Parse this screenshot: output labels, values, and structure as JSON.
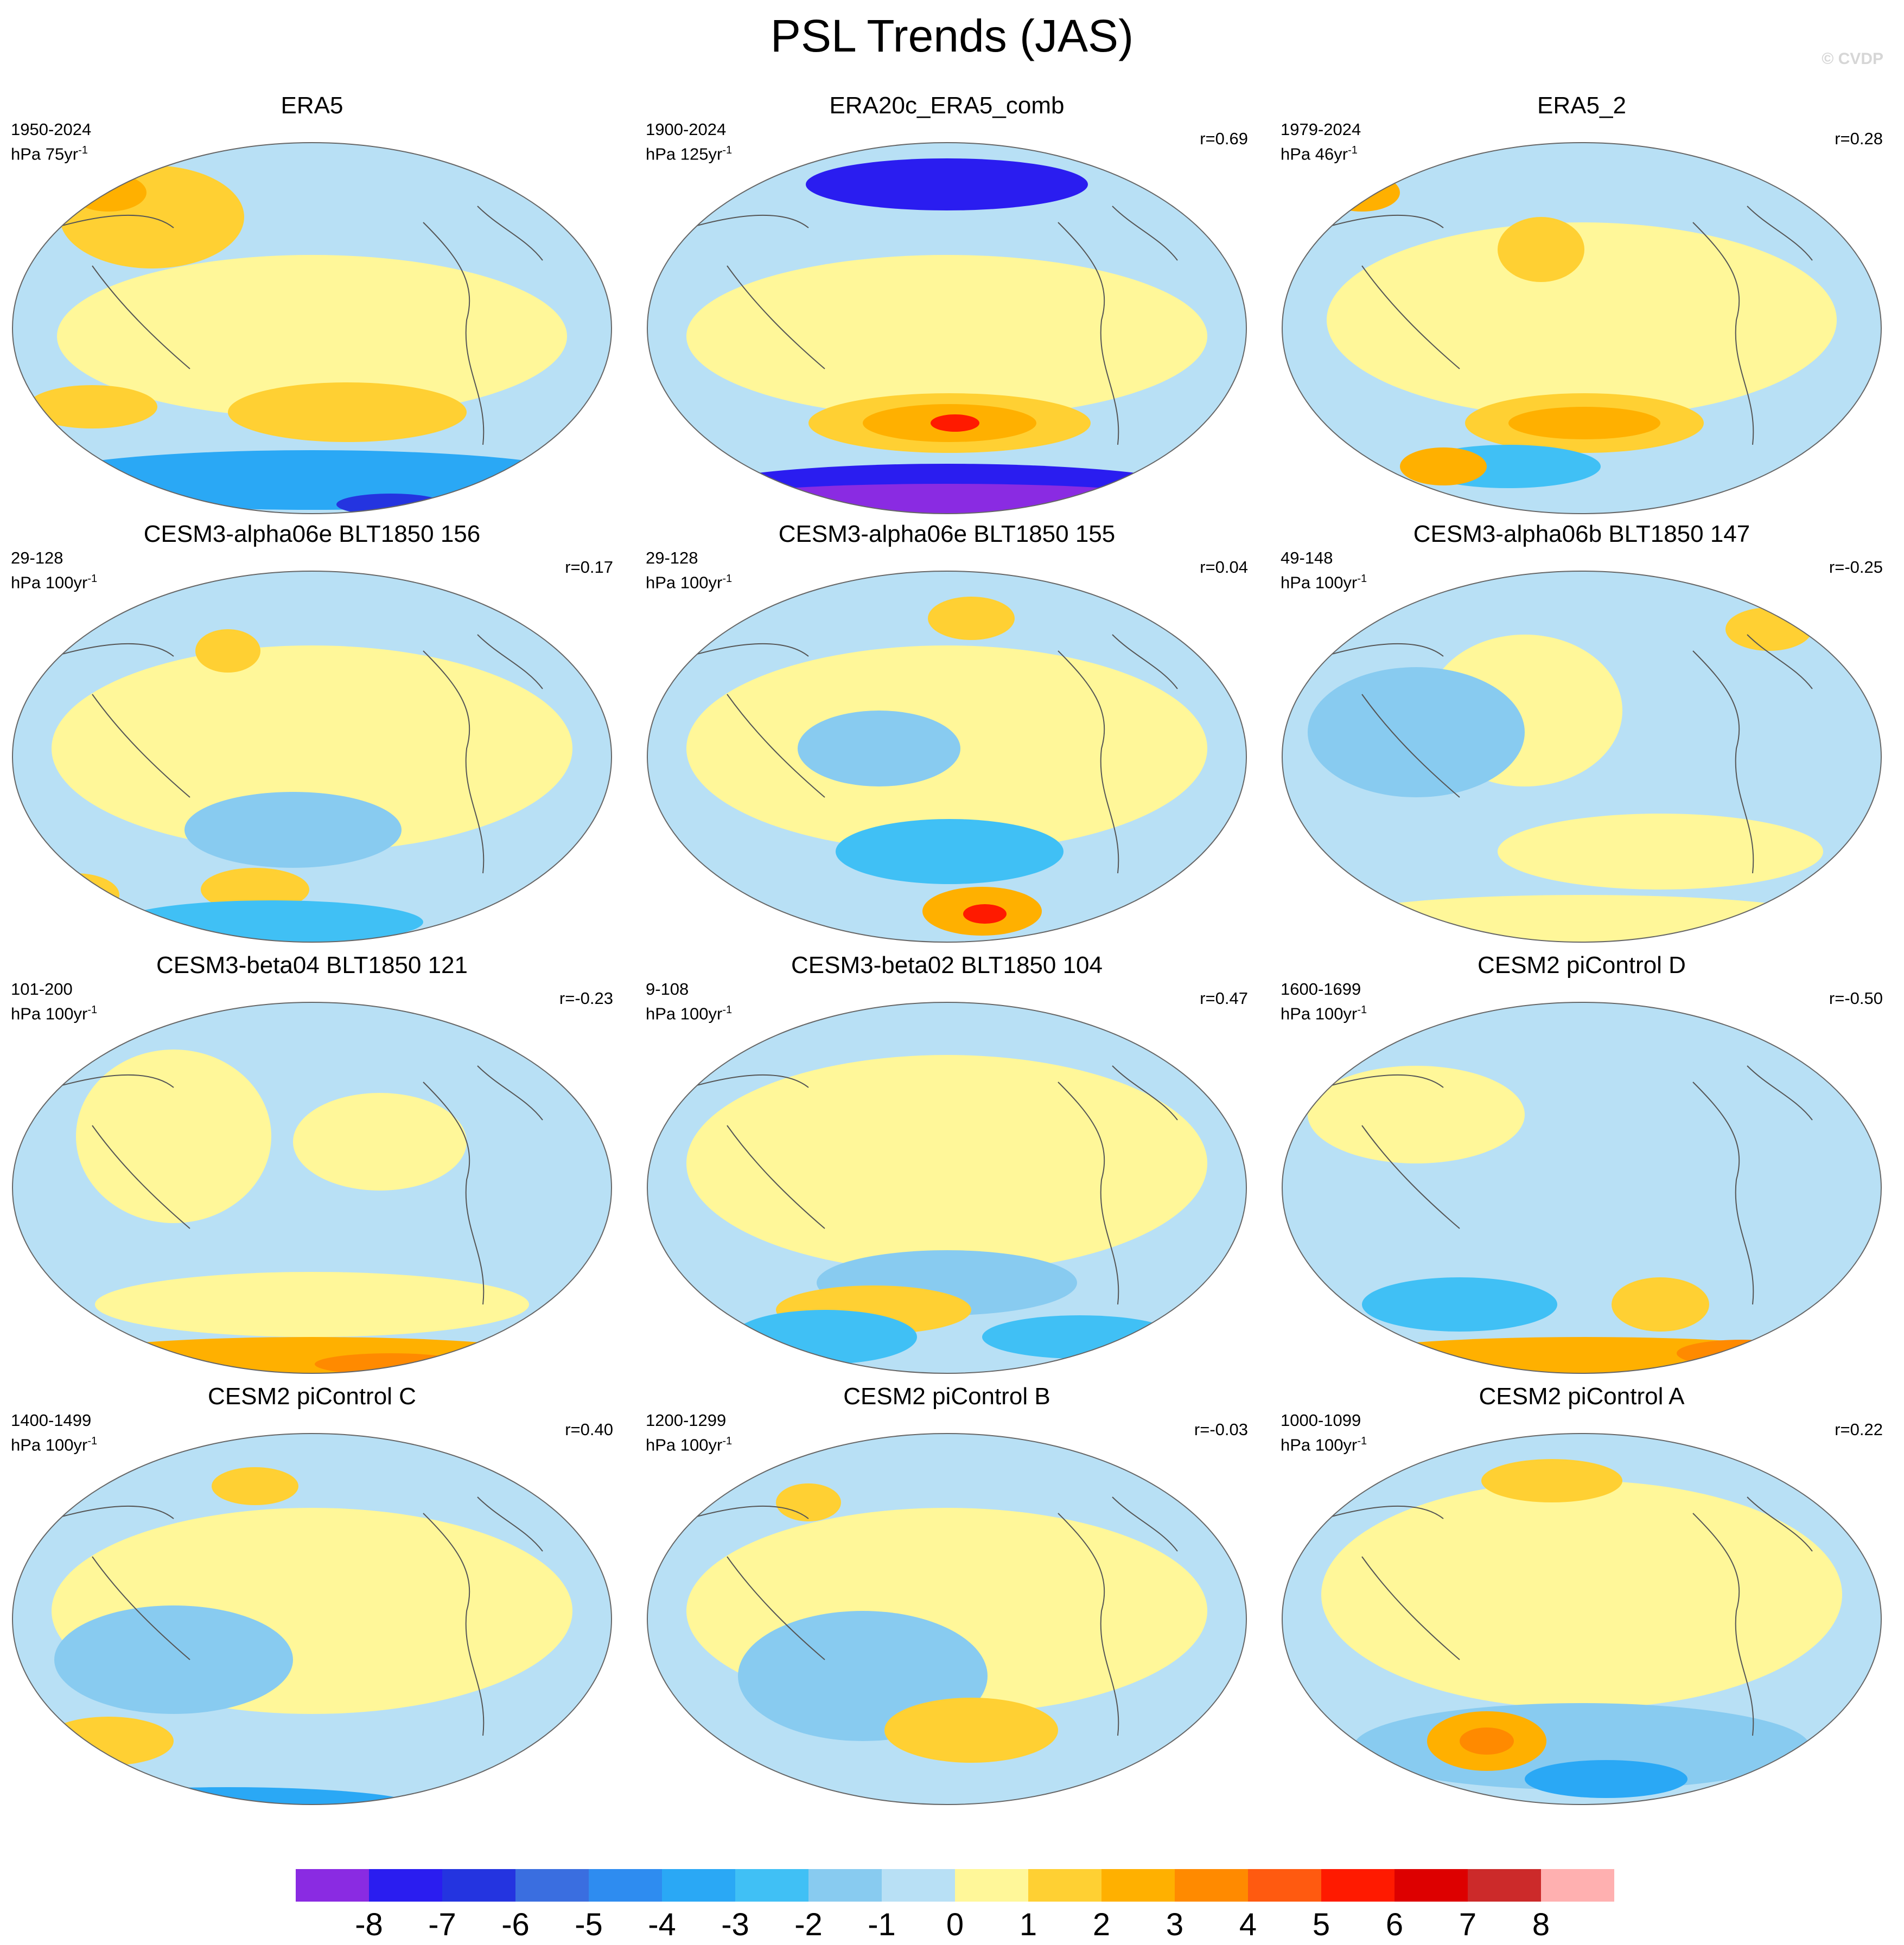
{
  "title": "PSL Trends (JAS)",
  "watermark": "© CVDP",
  "panels": [
    {
      "title": "ERA5",
      "period": "1950-2024",
      "units": "hPa 75yr",
      "corr": ""
    },
    {
      "title": "ERA20c_ERA5_comb",
      "period": "1900-2024",
      "units": "hPa 125yr",
      "corr": "r=0.69"
    },
    {
      "title": "ERA5_2",
      "period": "1979-2024",
      "units": "hPa 46yr",
      "corr": "r=0.28"
    },
    {
      "title": "CESM3-alpha06e BLT1850 156",
      "period": "29-128",
      "units": "hPa 100yr",
      "corr": "r=0.17"
    },
    {
      "title": "CESM3-alpha06e BLT1850 155",
      "period": "29-128",
      "units": "hPa 100yr",
      "corr": "r=0.04"
    },
    {
      "title": "CESM3-alpha06b BLT1850 147",
      "period": "49-148",
      "units": "hPa 100yr",
      "corr": "r=-0.25"
    },
    {
      "title": "CESM3-beta04 BLT1850 121",
      "period": "101-200",
      "units": "hPa 100yr",
      "corr": "r=-0.23"
    },
    {
      "title": "CESM3-beta02 BLT1850 104",
      "period": "9-108",
      "units": "hPa 100yr",
      "corr": "r=0.47"
    },
    {
      "title": "CESM2 piControl D",
      "period": "1600-1699",
      "units": "hPa 100yr",
      "corr": "r=-0.50"
    },
    {
      "title": "CESM2 piControl C",
      "period": "1400-1499",
      "units": "hPa 100yr",
      "corr": "r=0.40"
    },
    {
      "title": "CESM2 piControl B",
      "period": "1200-1299",
      "units": "hPa 100yr",
      "corr": "r=-0.03"
    },
    {
      "title": "CESM2 piControl A",
      "period": "1000-1099",
      "units": "hPa 100yr",
      "corr": "r=0.22"
    }
  ],
  "units_superscript": "-1",
  "colorbar": {
    "colors": [
      "#8a2be2",
      "#2a1df0",
      "#2434e0",
      "#3a6ee0",
      "#2e8cf0",
      "#2aa8f5",
      "#40c0f5",
      "#88cbf0",
      "#b8e0f5",
      "#fff799",
      "#ffd033",
      "#ffb000",
      "#ff8a00",
      "#ff5a10",
      "#ff1a00",
      "#dd0000",
      "#cc2a2a",
      "#ffb0b0"
    ],
    "labels": [
      "-8",
      "-7",
      "-6",
      "-5",
      "-4",
      "-3",
      "-2",
      "-1",
      "0",
      "1",
      "2",
      "3",
      "4",
      "5",
      "6",
      "7",
      "8"
    ]
  }
}
